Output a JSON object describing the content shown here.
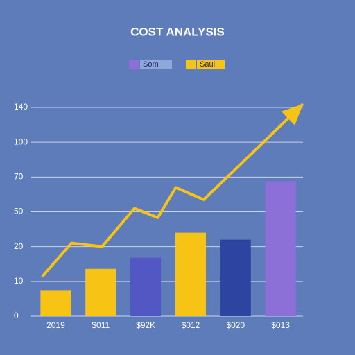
{
  "chart_data": {
    "type": "bar",
    "title": "COST ANALYSIS",
    "categories": [
      "2019",
      "$011",
      "$92K",
      "$012",
      "$020",
      "$013"
    ],
    "yticks": [
      0,
      10,
      20,
      50,
      70,
      100,
      140
    ],
    "ylim": [
      0,
      140
    ],
    "piecewise_y": true,
    "grid": true,
    "series": [
      {
        "name": "Som",
        "color": "#8c70d8",
        "colors": [
          "#f7c315",
          "#f7c315",
          "#5257c4",
          "#f7c315",
          "#2d44a0",
          "#8c70d8"
        ],
        "values": [
          7.5,
          13.6,
          16.8,
          32,
          26,
          67.6
        ]
      },
      {
        "name": "Saul",
        "color": "#f7c315",
        "type": "line",
        "x": [
          -0.3,
          0.35,
          1.03,
          1.75,
          2.27,
          2.67,
          3.29,
          3.91,
          5.5
        ],
        "values": [
          11.4,
          23,
          20,
          52,
          45,
          64,
          57,
          73.5,
          144
        ]
      }
    ]
  }
}
